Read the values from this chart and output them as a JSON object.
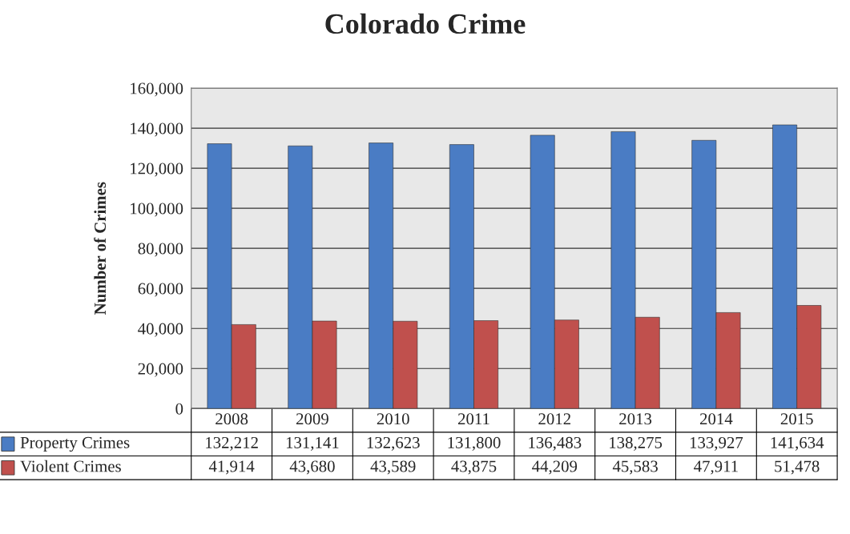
{
  "chart_data": {
    "type": "bar",
    "title": "Colorado Crime",
    "ylabel": "Number of Crimes",
    "categories": [
      "2008",
      "2009",
      "2010",
      "2011",
      "2012",
      "2013",
      "2014",
      "2015"
    ],
    "series": [
      {
        "name": "Property Crimes",
        "color": "#4a7cc4",
        "values": [
          132212,
          131141,
          132623,
          131800,
          136483,
          138275,
          133927,
          141634
        ],
        "value_labels": [
          "132,212",
          "131,141",
          "132,623",
          "131,800",
          "136,483",
          "138,275",
          "133,927",
          "141,634"
        ]
      },
      {
        "name": "Violent Crimes",
        "color": "#c0504d",
        "values": [
          41914,
          43680,
          43589,
          43875,
          44209,
          45583,
          47911,
          51478
        ],
        "value_labels": [
          "41,914",
          "43,680",
          "43,589",
          "43,875",
          "44,209",
          "45,583",
          "47,911",
          "51,478"
        ]
      }
    ],
    "ylim": [
      0,
      160000
    ],
    "yticks": [
      {
        "value": 0,
        "label": "0"
      },
      {
        "value": 20000,
        "label": "20,000"
      },
      {
        "value": 40000,
        "label": "40,000"
      },
      {
        "value": 60000,
        "label": "60,000"
      },
      {
        "value": 80000,
        "label": "80,000"
      },
      {
        "value": 100000,
        "label": "100,000"
      },
      {
        "value": 120000,
        "label": "120,000"
      },
      {
        "value": 140000,
        "label": "140,000"
      },
      {
        "value": 160000,
        "label": "160,000"
      }
    ],
    "grid": "y",
    "legend": "bottom"
  }
}
